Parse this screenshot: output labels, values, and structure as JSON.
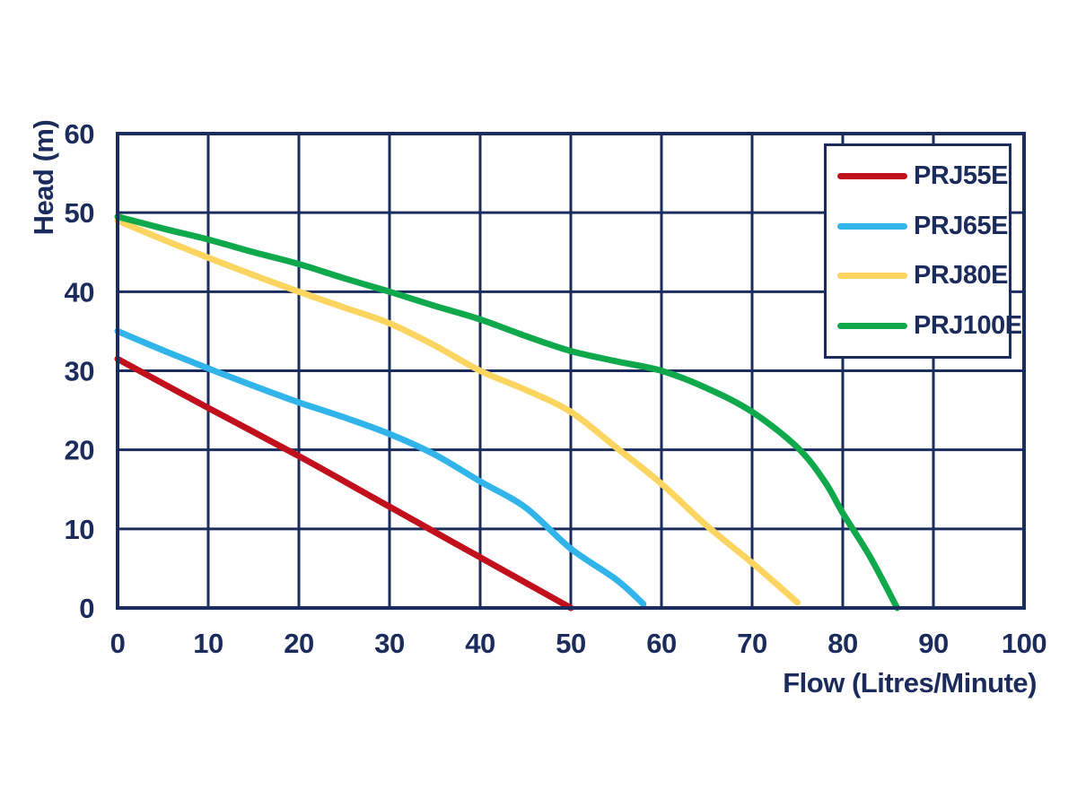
{
  "chart_data": {
    "type": "line",
    "title": "",
    "xlabel": "Flow (Litres/Minute)",
    "ylabel": "Head (m)",
    "xlim": [
      0,
      100
    ],
    "ylim": [
      0,
      60
    ],
    "xticks": [
      0,
      10,
      20,
      30,
      40,
      50,
      60,
      70,
      80,
      90,
      100
    ],
    "yticks": [
      0,
      10,
      20,
      30,
      40,
      50,
      60
    ],
    "grid": true,
    "legend_position": "top-right",
    "colors": {
      "axis_text": "#1b2b5c",
      "grid": "#1b2d5e",
      "plot_border": "#1b2d5e",
      "background": "#ffffff"
    },
    "series": [
      {
        "name": "PRJ55E",
        "color": "#c1101c",
        "points": [
          [
            0,
            31.5
          ],
          [
            10,
            25.3
          ],
          [
            20,
            19.2
          ],
          [
            30,
            12.8
          ],
          [
            40,
            6.4
          ],
          [
            50,
            0
          ]
        ]
      },
      {
        "name": "PRJ65E",
        "color": "#30b4e9",
        "points": [
          [
            0,
            35
          ],
          [
            5,
            32.6
          ],
          [
            10,
            30.3
          ],
          [
            15,
            28.1
          ],
          [
            20,
            26
          ],
          [
            25,
            24.1
          ],
          [
            30,
            22
          ],
          [
            35,
            19.4
          ],
          [
            40,
            16
          ],
          [
            45,
            12.7
          ],
          [
            50,
            7.5
          ],
          [
            55,
            3.6
          ],
          [
            58,
            0.5
          ]
        ]
      },
      {
        "name": "PRJ80E",
        "color": "#fbd55f",
        "points": [
          [
            0,
            49
          ],
          [
            5,
            46.6
          ],
          [
            10,
            44.3
          ],
          [
            15,
            42.1
          ],
          [
            20,
            40
          ],
          [
            25,
            38
          ],
          [
            30,
            36
          ],
          [
            35,
            33.2
          ],
          [
            40,
            30
          ],
          [
            45,
            27.6
          ],
          [
            50,
            24.8
          ],
          [
            55,
            20.3
          ],
          [
            60,
            15.7
          ],
          [
            65,
            10.4
          ],
          [
            70,
            5.7
          ],
          [
            75,
            0.7
          ]
        ]
      },
      {
        "name": "PRJ100E",
        "color": "#0fa94c",
        "points": [
          [
            0,
            49.5
          ],
          [
            5,
            48
          ],
          [
            10,
            46.6
          ],
          [
            15,
            45
          ],
          [
            20,
            43.5
          ],
          [
            25,
            41.7
          ],
          [
            30,
            40
          ],
          [
            35,
            38.2
          ],
          [
            40,
            36.5
          ],
          [
            45,
            34.4
          ],
          [
            50,
            32.5
          ],
          [
            55,
            31.2
          ],
          [
            60,
            30
          ],
          [
            65,
            27.8
          ],
          [
            70,
            24.8
          ],
          [
            75,
            20.3
          ],
          [
            78,
            16
          ],
          [
            80,
            12
          ],
          [
            83,
            6.5
          ],
          [
            86,
            0
          ]
        ]
      }
    ]
  }
}
